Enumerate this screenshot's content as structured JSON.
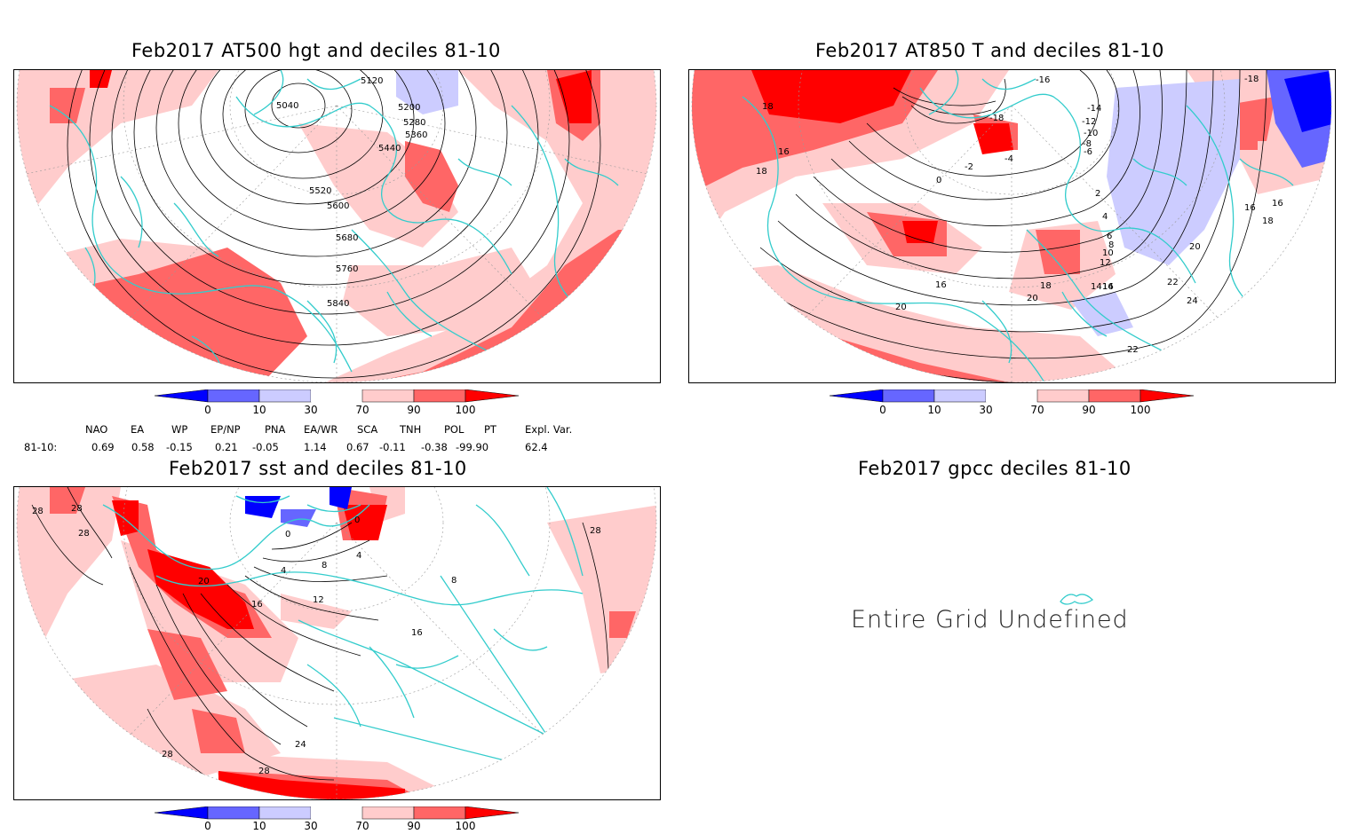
{
  "panels": [
    {
      "id": "at500",
      "title": "Feb2017 AT500 hgt and deciles 81-10",
      "contour_labels": [
        "5120",
        "5040",
        "5200",
        "5280",
        "5360",
        "5440",
        "5520",
        "5600",
        "5680",
        "5760",
        "5840"
      ]
    },
    {
      "id": "at850",
      "title": "Feb2017 AT850 T and deciles 81-10",
      "contour_labels": [
        "18",
        "16",
        "18",
        "-16",
        "-14",
        "-12",
        "-10",
        "-8",
        "-6",
        "-4",
        "-2",
        "0",
        "2",
        "4",
        "6",
        "8",
        "10",
        "12",
        "14",
        "16",
        "18",
        "20",
        "22",
        "24",
        "22",
        "20",
        "16",
        "14",
        "16",
        "-18",
        "-18",
        "20",
        "18",
        "16"
      ]
    },
    {
      "id": "sst",
      "title": "Feb2017 sst and deciles 81-10",
      "contour_labels": [
        "28",
        "28",
        "28",
        "0",
        "0",
        "4",
        "8",
        "12",
        "16",
        "20",
        "16",
        "24",
        "28",
        "28",
        "4",
        "8",
        "28"
      ]
    },
    {
      "id": "gpcc",
      "title": "Feb2017 gpcc deciles 81-10",
      "message": "Entire Grid Undefined"
    }
  ],
  "colorbar": {
    "ticks": [
      "0",
      "10",
      "30",
      "70",
      "90",
      "100"
    ],
    "colors": {
      "below_0": "#0000ff",
      "d0_10": "#6666ff",
      "d10_30": "#ccccff",
      "d30_70": "#ffffff",
      "d70_90": "#ffcccc",
      "d90_100": "#ff6666",
      "above_100": "#ff0000"
    }
  },
  "indices": {
    "headers": [
      "NAO",
      "EA",
      "WP",
      "EP/NP",
      "PNA",
      "EA/WR",
      "SCA",
      "TNH",
      "POL",
      "PT",
      "Expl. Var."
    ],
    "row_label": "81-10:",
    "values": [
      "0.69",
      "0.58",
      "-0.15",
      "0.21",
      "-0.05",
      "1.14",
      "0.67",
      "-0.11",
      "-0.38",
      "-99.90",
      "62.4"
    ]
  },
  "map_colors": {
    "coast": "#33cccc",
    "contour": "#000000",
    "light_red": "#ffcccc",
    "mid_red": "#ff6666",
    "deep_red": "#ff0000",
    "light_blue": "#ccccff",
    "mid_blue": "#6666ff",
    "deep_blue": "#0000ff"
  }
}
